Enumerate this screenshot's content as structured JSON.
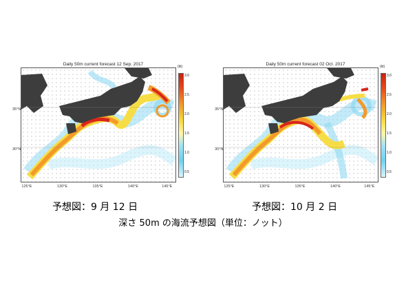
{
  "maps": [
    {
      "title": "Daily 50m current forecast 12 Sep. 2017",
      "caption": "予想図：9 月 12 日"
    },
    {
      "title": "Daily 50m current forecast 02 Oct. 2017",
      "caption": "予想図：10 月 2 日"
    }
  ],
  "lat_labels": [
    "35°N",
    "30°N"
  ],
  "lon_labels": [
    "125°E",
    "130°E",
    "135°E",
    "140°E",
    "145°E"
  ],
  "colorbar": {
    "unit": "(kt)",
    "ticks": [
      "3.0",
      "2.5",
      "2.0",
      "1.5",
      "1.0",
      "0.5"
    ]
  },
  "footer_caption": "深さ 50m の海流予想図（単位：ノット）",
  "colors": {
    "land": "#3d3d3d",
    "strong_current": "#d8261a",
    "medium_current": "#f39a2a",
    "weak_current": "#f6dd45",
    "faint_current": "#8fd9f2"
  }
}
